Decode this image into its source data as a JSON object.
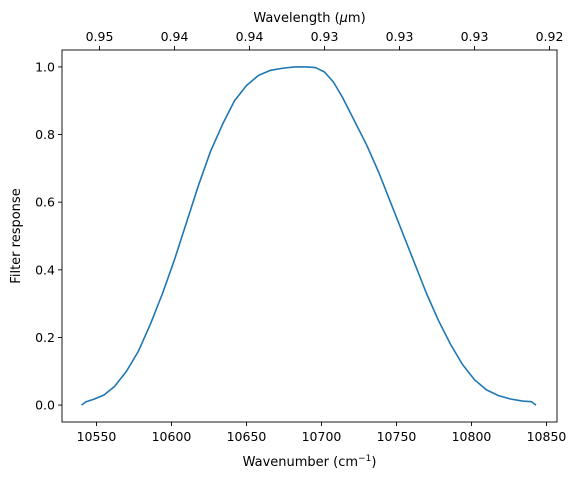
{
  "chart_data": {
    "type": "line",
    "title": "",
    "xlabel": "Wavenumber (cm",
    "xlabel_sup": "−1",
    "xlabel_close": ")",
    "x2label": "Wavelength (",
    "x2label_mu": "μ",
    "x2label_unit": "m)",
    "ylabel": "Filter response",
    "xlim": [
      10527,
      10857
    ],
    "ylim": [
      -0.05,
      1.05
    ],
    "x_ticks": [
      10550,
      10600,
      10650,
      10700,
      10750,
      10800,
      10850
    ],
    "x_tick_labels": [
      "10550",
      "10600",
      "10650",
      "10700",
      "10750",
      "10800",
      "10850"
    ],
    "y_ticks": [
      0.0,
      0.2,
      0.4,
      0.6,
      0.8,
      1.0
    ],
    "y_tick_labels": [
      "0.0",
      "0.2",
      "0.4",
      "0.6",
      "0.8",
      "1.0"
    ],
    "x2_ticks": [
      10552,
      10602,
      10652,
      10702,
      10752,
      10802,
      10852
    ],
    "x2_tick_labels": [
      "0.95",
      "0.94",
      "0.94",
      "0.93",
      "0.93",
      "0.93",
      "0.92"
    ],
    "grid": false,
    "series": [
      {
        "color": "#1f77b4",
        "x": [
          10540,
          10543,
          10548,
          10555,
          10562,
          10570,
          10578,
          10586,
          10594,
          10602,
          10610,
          10618,
          10626,
          10634,
          10642,
          10650,
          10658,
          10666,
          10674,
          10682,
          10690,
          10696,
          10702,
          10708,
          10714,
          10722,
          10730,
          10738,
          10746,
          10754,
          10762,
          10770,
          10778,
          10786,
          10794,
          10802,
          10810,
          10818,
          10826,
          10834,
          10840,
          10843
        ],
        "y": [
          0.0,
          0.01,
          0.017,
          0.03,
          0.055,
          0.1,
          0.16,
          0.24,
          0.33,
          0.43,
          0.54,
          0.65,
          0.75,
          0.83,
          0.9,
          0.945,
          0.975,
          0.99,
          0.996,
          1.0,
          1.0,
          0.998,
          0.985,
          0.955,
          0.91,
          0.84,
          0.77,
          0.69,
          0.6,
          0.51,
          0.42,
          0.33,
          0.25,
          0.18,
          0.12,
          0.075,
          0.045,
          0.028,
          0.018,
          0.012,
          0.01,
          0.0
        ]
      }
    ]
  }
}
